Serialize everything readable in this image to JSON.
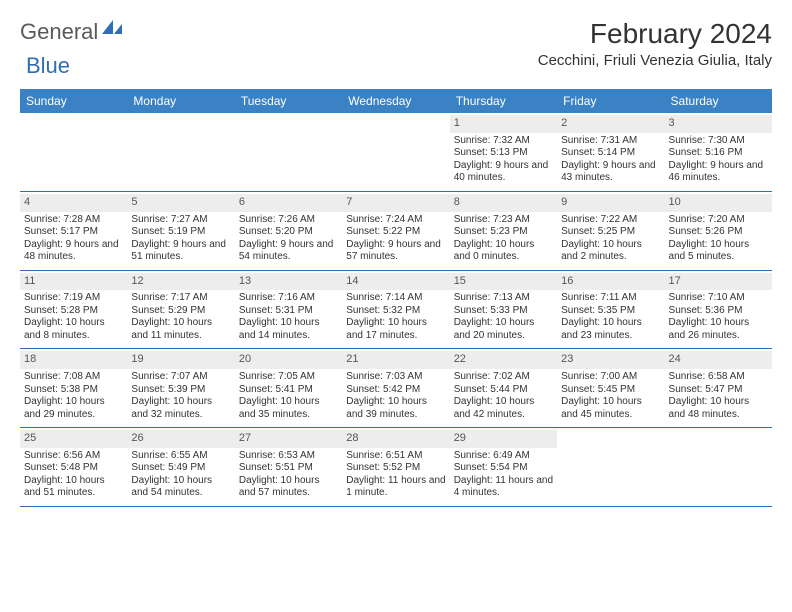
{
  "brand": {
    "part1": "General",
    "part2": "Blue"
  },
  "title": "February 2024",
  "location": "Cecchini, Friuli Venezia Giulia, Italy",
  "colors": {
    "header_bg": "#3b82c4",
    "header_text": "#ffffff",
    "daynum_bg": "#ededed",
    "border": "#2f6fb3",
    "brand_gray": "#5a5a5a",
    "brand_blue": "#2f6fb3",
    "text": "#333333",
    "background": "#ffffff"
  },
  "fonts": {
    "title_size_pt": 21,
    "location_size_pt": 11,
    "header_size_pt": 9,
    "cell_size_pt": 7.5
  },
  "day_names": [
    "Sunday",
    "Monday",
    "Tuesday",
    "Wednesday",
    "Thursday",
    "Friday",
    "Saturday"
  ],
  "weeks": [
    [
      {
        "day": "",
        "sunrise": "",
        "sunset": "",
        "daylight": ""
      },
      {
        "day": "",
        "sunrise": "",
        "sunset": "",
        "daylight": ""
      },
      {
        "day": "",
        "sunrise": "",
        "sunset": "",
        "daylight": ""
      },
      {
        "day": "",
        "sunrise": "",
        "sunset": "",
        "daylight": ""
      },
      {
        "day": "1",
        "sunrise": "Sunrise: 7:32 AM",
        "sunset": "Sunset: 5:13 PM",
        "daylight": "Daylight: 9 hours and 40 minutes."
      },
      {
        "day": "2",
        "sunrise": "Sunrise: 7:31 AM",
        "sunset": "Sunset: 5:14 PM",
        "daylight": "Daylight: 9 hours and 43 minutes."
      },
      {
        "day": "3",
        "sunrise": "Sunrise: 7:30 AM",
        "sunset": "Sunset: 5:16 PM",
        "daylight": "Daylight: 9 hours and 46 minutes."
      }
    ],
    [
      {
        "day": "4",
        "sunrise": "Sunrise: 7:28 AM",
        "sunset": "Sunset: 5:17 PM",
        "daylight": "Daylight: 9 hours and 48 minutes."
      },
      {
        "day": "5",
        "sunrise": "Sunrise: 7:27 AM",
        "sunset": "Sunset: 5:19 PM",
        "daylight": "Daylight: 9 hours and 51 minutes."
      },
      {
        "day": "6",
        "sunrise": "Sunrise: 7:26 AM",
        "sunset": "Sunset: 5:20 PM",
        "daylight": "Daylight: 9 hours and 54 minutes."
      },
      {
        "day": "7",
        "sunrise": "Sunrise: 7:24 AM",
        "sunset": "Sunset: 5:22 PM",
        "daylight": "Daylight: 9 hours and 57 minutes."
      },
      {
        "day": "8",
        "sunrise": "Sunrise: 7:23 AM",
        "sunset": "Sunset: 5:23 PM",
        "daylight": "Daylight: 10 hours and 0 minutes."
      },
      {
        "day": "9",
        "sunrise": "Sunrise: 7:22 AM",
        "sunset": "Sunset: 5:25 PM",
        "daylight": "Daylight: 10 hours and 2 minutes."
      },
      {
        "day": "10",
        "sunrise": "Sunrise: 7:20 AM",
        "sunset": "Sunset: 5:26 PM",
        "daylight": "Daylight: 10 hours and 5 minutes."
      }
    ],
    [
      {
        "day": "11",
        "sunrise": "Sunrise: 7:19 AM",
        "sunset": "Sunset: 5:28 PM",
        "daylight": "Daylight: 10 hours and 8 minutes."
      },
      {
        "day": "12",
        "sunrise": "Sunrise: 7:17 AM",
        "sunset": "Sunset: 5:29 PM",
        "daylight": "Daylight: 10 hours and 11 minutes."
      },
      {
        "day": "13",
        "sunrise": "Sunrise: 7:16 AM",
        "sunset": "Sunset: 5:31 PM",
        "daylight": "Daylight: 10 hours and 14 minutes."
      },
      {
        "day": "14",
        "sunrise": "Sunrise: 7:14 AM",
        "sunset": "Sunset: 5:32 PM",
        "daylight": "Daylight: 10 hours and 17 minutes."
      },
      {
        "day": "15",
        "sunrise": "Sunrise: 7:13 AM",
        "sunset": "Sunset: 5:33 PM",
        "daylight": "Daylight: 10 hours and 20 minutes."
      },
      {
        "day": "16",
        "sunrise": "Sunrise: 7:11 AM",
        "sunset": "Sunset: 5:35 PM",
        "daylight": "Daylight: 10 hours and 23 minutes."
      },
      {
        "day": "17",
        "sunrise": "Sunrise: 7:10 AM",
        "sunset": "Sunset: 5:36 PM",
        "daylight": "Daylight: 10 hours and 26 minutes."
      }
    ],
    [
      {
        "day": "18",
        "sunrise": "Sunrise: 7:08 AM",
        "sunset": "Sunset: 5:38 PM",
        "daylight": "Daylight: 10 hours and 29 minutes."
      },
      {
        "day": "19",
        "sunrise": "Sunrise: 7:07 AM",
        "sunset": "Sunset: 5:39 PM",
        "daylight": "Daylight: 10 hours and 32 minutes."
      },
      {
        "day": "20",
        "sunrise": "Sunrise: 7:05 AM",
        "sunset": "Sunset: 5:41 PM",
        "daylight": "Daylight: 10 hours and 35 minutes."
      },
      {
        "day": "21",
        "sunrise": "Sunrise: 7:03 AM",
        "sunset": "Sunset: 5:42 PM",
        "daylight": "Daylight: 10 hours and 39 minutes."
      },
      {
        "day": "22",
        "sunrise": "Sunrise: 7:02 AM",
        "sunset": "Sunset: 5:44 PM",
        "daylight": "Daylight: 10 hours and 42 minutes."
      },
      {
        "day": "23",
        "sunrise": "Sunrise: 7:00 AM",
        "sunset": "Sunset: 5:45 PM",
        "daylight": "Daylight: 10 hours and 45 minutes."
      },
      {
        "day": "24",
        "sunrise": "Sunrise: 6:58 AM",
        "sunset": "Sunset: 5:47 PM",
        "daylight": "Daylight: 10 hours and 48 minutes."
      }
    ],
    [
      {
        "day": "25",
        "sunrise": "Sunrise: 6:56 AM",
        "sunset": "Sunset: 5:48 PM",
        "daylight": "Daylight: 10 hours and 51 minutes."
      },
      {
        "day": "26",
        "sunrise": "Sunrise: 6:55 AM",
        "sunset": "Sunset: 5:49 PM",
        "daylight": "Daylight: 10 hours and 54 minutes."
      },
      {
        "day": "27",
        "sunrise": "Sunrise: 6:53 AM",
        "sunset": "Sunset: 5:51 PM",
        "daylight": "Daylight: 10 hours and 57 minutes."
      },
      {
        "day": "28",
        "sunrise": "Sunrise: 6:51 AM",
        "sunset": "Sunset: 5:52 PM",
        "daylight": "Daylight: 11 hours and 1 minute."
      },
      {
        "day": "29",
        "sunrise": "Sunrise: 6:49 AM",
        "sunset": "Sunset: 5:54 PM",
        "daylight": "Daylight: 11 hours and 4 minutes."
      },
      {
        "day": "",
        "sunrise": "",
        "sunset": "",
        "daylight": ""
      },
      {
        "day": "",
        "sunrise": "",
        "sunset": "",
        "daylight": ""
      }
    ]
  ]
}
